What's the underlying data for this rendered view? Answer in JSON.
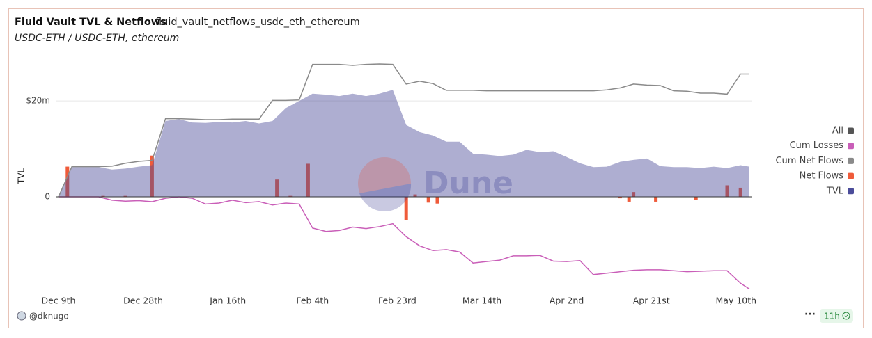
{
  "header": {
    "title": "Fluid Vault TVL & Netflows",
    "query": "fluid_vault_netflows_usdc_eth_ethereum",
    "subtitle": "USDC-ETH / USDC-ETH, ethereum"
  },
  "chart_data": {
    "type": "combo",
    "y_label": "TVL",
    "watermark": "Dune",
    "x": [
      0,
      3,
      6,
      9,
      12,
      15,
      18,
      21,
      24,
      27,
      30,
      33,
      36,
      39,
      42,
      45,
      48,
      51,
      54,
      57,
      60,
      63,
      66,
      69,
      72,
      75,
      78,
      81,
      84,
      87,
      90,
      93,
      96,
      99,
      102,
      105,
      108,
      111,
      114,
      117,
      120,
      123,
      126,
      129,
      132,
      135,
      138,
      141,
      144,
      147,
      150,
      153,
      155
    ],
    "xlim": [
      0,
      155
    ],
    "xticks": [
      {
        "value": 0,
        "label": "Dec 9th"
      },
      {
        "value": 19,
        "label": "Dec 28th"
      },
      {
        "value": 38,
        "label": "Jan 16th"
      },
      {
        "value": 57,
        "label": "Feb 4th"
      },
      {
        "value": 76,
        "label": "Feb 23rd"
      },
      {
        "value": 95,
        "label": "Mar 14th"
      },
      {
        "value": 114,
        "label": "Apr 2nd"
      },
      {
        "value": 133,
        "label": "Apr 21st"
      },
      {
        "value": 152,
        "label": "May 10th"
      }
    ],
    "ylim": [
      -20,
      29
    ],
    "yticks": [
      0,
      {
        "value": 20,
        "label": "$20m"
      }
    ],
    "grid": true,
    "legend_header": {
      "name": "All",
      "color": "#555555"
    },
    "series": [
      {
        "name": "Cum Losses",
        "type": "line",
        "color": "#c95eb8",
        "values": [
          0,
          0,
          0,
          0,
          -0.7,
          -0.9,
          -0.8,
          -1,
          -0.3,
          0,
          -0.3,
          -1.5,
          -1.3,
          -0.7,
          -1.2,
          -1,
          -1.7,
          -1.3,
          -1.5,
          -6.5,
          -7.2,
          -7,
          -6.3,
          -6.6,
          -6.2,
          -5.6,
          -8.3,
          -10.2,
          -11.2,
          -11,
          -11.5,
          -13.8,
          -13.5,
          -13.2,
          -12.3,
          -12.3,
          -12.2,
          -13.4,
          -13.5,
          -13.3,
          -16.2,
          -15.9,
          -15.6,
          -15.3,
          -15.2,
          -15.2,
          -15.4,
          -15.6,
          -15.5,
          -15.4,
          -15.4,
          -18,
          -19.2
        ]
      },
      {
        "name": "Cum Net Flows",
        "type": "line",
        "color": "#8a8a8a",
        "values": [
          0,
          6.3,
          6.3,
          6.3,
          6.4,
          7,
          7.4,
          7.6,
          16.3,
          16.3,
          16.2,
          16.1,
          16.1,
          16.2,
          16.2,
          16.2,
          20.1,
          20.1,
          20.2,
          27.6,
          27.6,
          27.6,
          27.4,
          27.6,
          27.7,
          27.6,
          23.5,
          24.1,
          23.6,
          22.2,
          22.2,
          22.2,
          22.1,
          22.1,
          22.1,
          22.1,
          22.1,
          22.1,
          22.1,
          22.1,
          22.1,
          22.3,
          22.7,
          23.5,
          23.3,
          23.2,
          22.1,
          22,
          21.6,
          21.6,
          21.4,
          25.6,
          25.6
        ]
      },
      {
        "name": "Net Flows",
        "type": "bar",
        "color": "#ef5b3a",
        "x": [
          2,
          10,
          15,
          21,
          49,
          52,
          56,
          78,
          80,
          83,
          85,
          126,
          128,
          129,
          134,
          143,
          150,
          153
        ],
        "values": [
          6.3,
          0.2,
          0.2,
          8.6,
          3.6,
          0.2,
          6.9,
          -4.9,
          0.5,
          -1.2,
          -1.4,
          -0.3,
          -1,
          1,
          -1,
          -0.6,
          2.4,
          1.9
        ]
      },
      {
        "name": "TVL",
        "type": "area",
        "color": "#4b4c9a",
        "values": [
          0,
          6.2,
          6.2,
          6.2,
          5.7,
          5.9,
          6.3,
          6.6,
          15.8,
          16.2,
          15.5,
          15.4,
          15.6,
          15.5,
          15.8,
          15.3,
          15.8,
          18.5,
          20,
          21.5,
          21.3,
          21,
          21.5,
          21,
          21.5,
          22.3,
          15,
          13.5,
          12.8,
          11.5,
          11.5,
          9,
          8.8,
          8.5,
          8.8,
          9.8,
          9.3,
          9.5,
          8.3,
          7,
          6.2,
          6.3,
          7.3,
          7.7,
          8,
          6.4,
          6.2,
          6.2,
          6,
          6.3,
          6,
          6.6,
          6.3
        ]
      }
    ]
  },
  "footer": {
    "author": "@dknugo",
    "age": "11h"
  }
}
